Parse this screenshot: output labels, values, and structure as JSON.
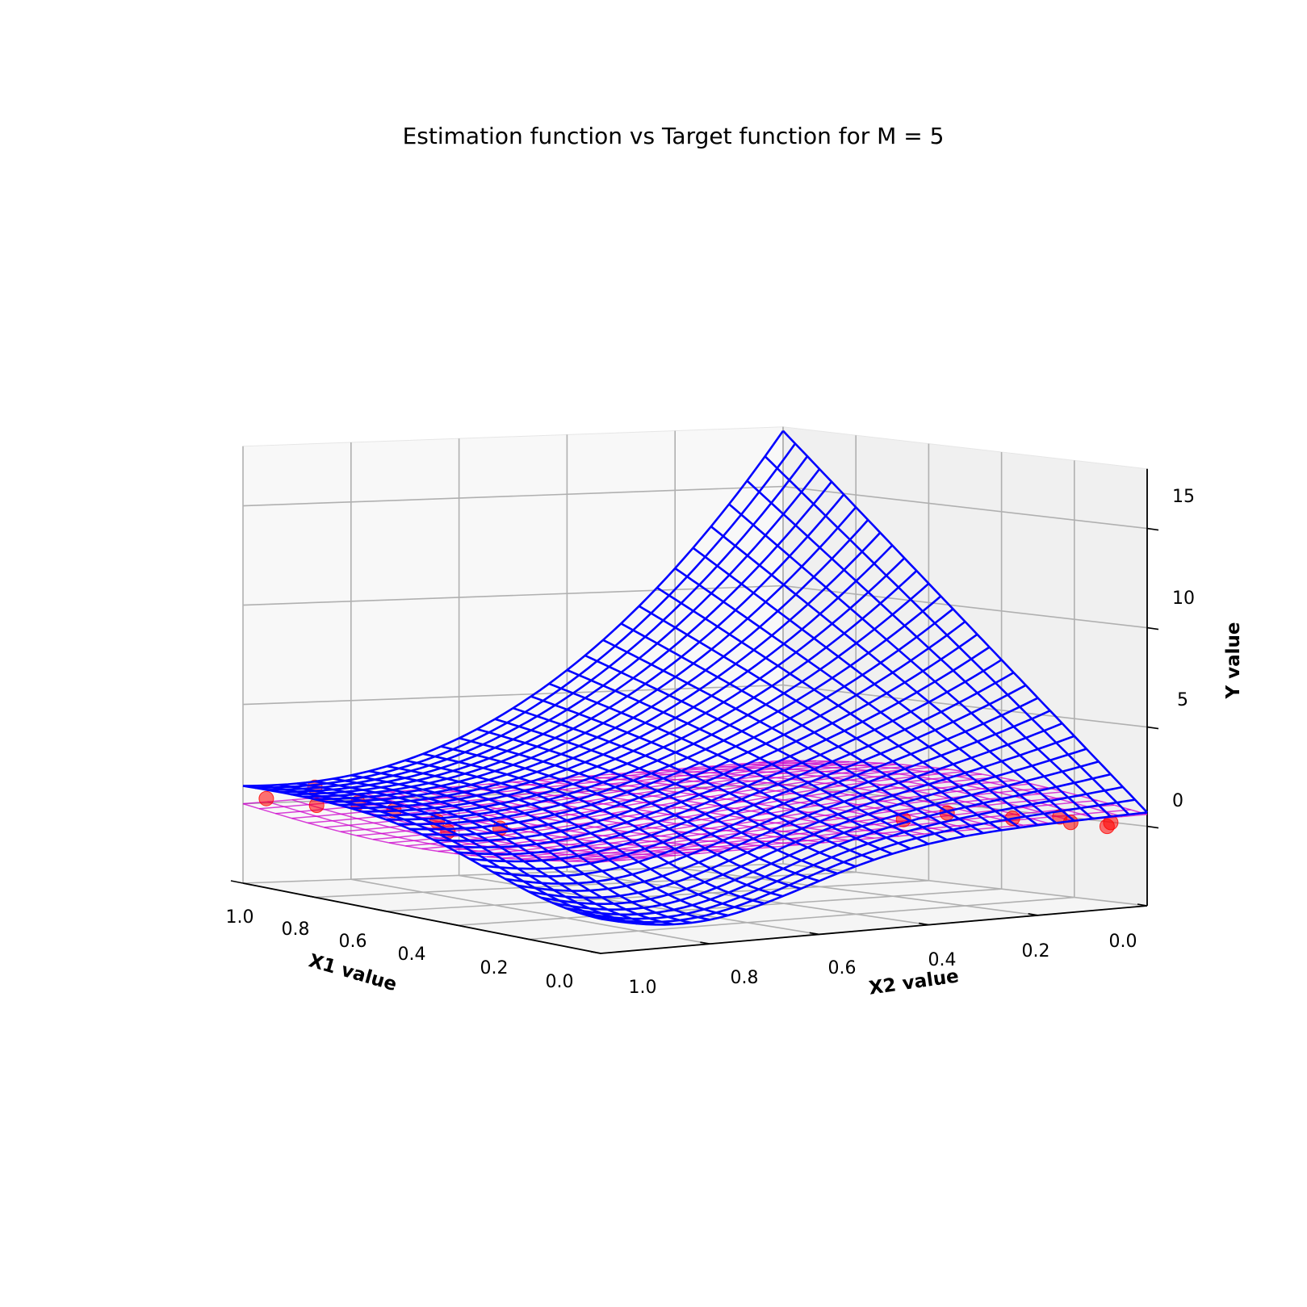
{
  "chart_data": {
    "type": "3d-surface",
    "title": "Estimation function vs Target function for M = 5",
    "xlabel": "X1 value",
    "ylabel": "X2 value",
    "zlabel": "Y value",
    "x_ticks": [
      "0.0",
      "0.2",
      "0.4",
      "0.6",
      "0.8",
      "1.0"
    ],
    "y_ticks": [
      "0.0",
      "0.2",
      "0.4",
      "0.6",
      "0.8",
      "1.0"
    ],
    "z_ticks": [
      "0",
      "5",
      "10",
      "15"
    ],
    "xlim": [
      0,
      1
    ],
    "ylim": [
      0,
      1
    ],
    "zlim": [
      -4,
      18
    ],
    "grid": true,
    "series": [
      {
        "kind": "wireframe",
        "color": "#0000ff",
        "grid_lines": 30
      },
      {
        "kind": "surface",
        "color": "#cc00cc"
      },
      {
        "kind": "scatter",
        "color": "#ff0000"
      }
    ]
  }
}
